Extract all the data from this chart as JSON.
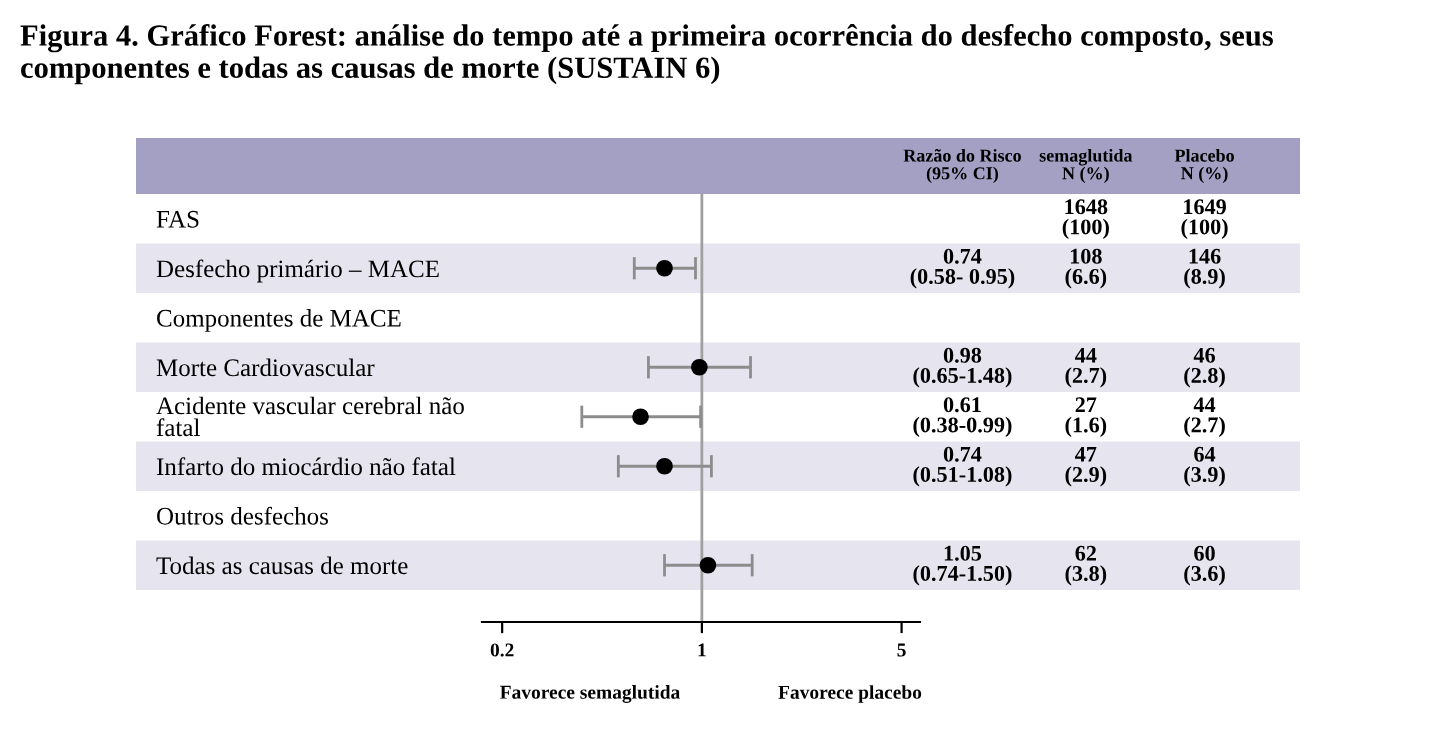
{
  "chart_data": [
    {
      "type": "scatter",
      "orientation": "horizontal",
      "title": "Figura 4. Gráfico Forest: análise do tempo até a primeira ocorrência do desfecho composto, seus componentes e todas as causas de morte (SUSTAIN 6)",
      "categories": [
        "FAS",
        "Desfecho primário – MACE",
        "Componentes de MACE",
        "Morte Cardiovascular",
        "Acidente vascular cerebral não\nfatal",
        "Infarto do miocárdio não fatal",
        "Outros desfechos",
        "Todas as causas de morte"
      ],
      "series": [
        {
          "color": "#000000",
          "values": [
            null,
            0.74,
            null,
            0.98,
            0.61,
            0.74,
            null,
            1.05
          ],
          "errors": [
            null,
            [
              0.58,
              0.95
            ],
            null,
            [
              0.65,
              1.48
            ],
            [
              0.38,
              0.99
            ],
            [
              0.51,
              1.08
            ],
            null,
            [
              0.74,
              1.5
            ]
          ]
        }
      ],
      "log": "x",
      "xlim": [
        0.17,
        5.8
      ],
      "xticks": [
        0.2,
        1,
        5
      ],
      "marker": "circle",
      "grid": false,
      "legend": false,
      "ref_lines": [
        {
          "axis": "x",
          "value": 1,
          "color": "#a0a0a0"
        }
      ],
      "annotations": [
        "Favorece semaglutida",
        "Favorece placebo"
      ]
    },
    {
      "type": "other",
      "categories": [
        "Razão do Risco\n(95% CI)",
        "semaglutida\nN (%)",
        "Placebo\nN (%)"
      ],
      "cell_labels": [
        [
          null,
          "1648\n(100)",
          "1649\n(100)"
        ],
        [
          "0.74\n(0.58- 0.95)",
          "108\n(6.6)",
          "146\n(8.9)"
        ],
        [
          null,
          null,
          null
        ],
        [
          "0.98\n(0.65-1.48)",
          "44\n(2.7)",
          "46\n(2.8)"
        ],
        [
          "0.61\n(0.38-0.99)",
          "27\n(1.6)",
          "44\n(2.7)"
        ],
        [
          "0.74\n(0.51-1.08)",
          "47\n(2.9)",
          "64\n(3.9)"
        ],
        [
          null,
          null,
          null
        ],
        [
          "1.05\n(0.74-1.50)",
          "62\n(3.8)",
          "60\n(3.6)"
        ]
      ]
    }
  ]
}
